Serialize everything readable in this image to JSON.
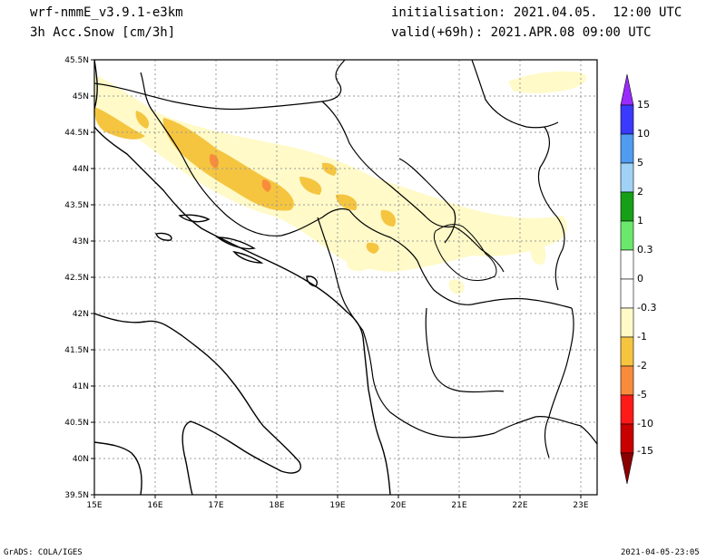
{
  "header": {
    "model": "wrf-nmmE_v3.9.1-e3km",
    "variable": "3h Acc.Snow [cm/3h]",
    "init": "initialisation: 2021.04.05.  12:00 UTC",
    "valid": "valid(+69h): 2021.APR.08 09:00 UTC"
  },
  "axes": {
    "lat_labels": [
      "45.5N",
      "45N",
      "44.5N",
      "44N",
      "43.5N",
      "43N",
      "42.5N",
      "42N",
      "41.5N",
      "41N",
      "40.5N",
      "40N",
      "39.5N"
    ],
    "lon_labels": [
      "15E",
      "16E",
      "17E",
      "18E",
      "19E",
      "20E",
      "21E",
      "22E",
      "23E"
    ]
  },
  "colorbar": {
    "labels": [
      "15",
      "10",
      "5",
      "2",
      "1",
      "0.3",
      "0",
      "-0.3",
      "-1",
      "-2",
      "-5",
      "-10",
      "-15"
    ],
    "colors": [
      "#9a2bff",
      "#3a3aff",
      "#4f9cf0",
      "#a0d2f5",
      "#17a017",
      "#6be86b",
      "#ffffff",
      "#ffffff",
      "#fffac8",
      "#f5c540",
      "#f98c3c",
      "#ff1a1a",
      "#c80000",
      "#8b0000"
    ]
  },
  "footer": {
    "left": "GrADS: COLA/IGES",
    "right": "2021-04-05-23:05"
  }
}
